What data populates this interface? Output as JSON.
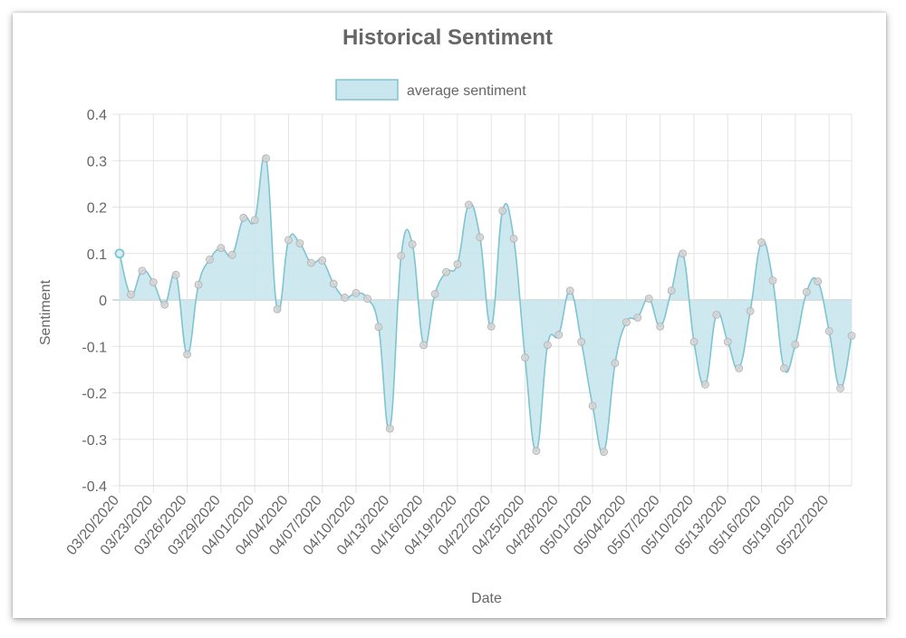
{
  "chart_data": {
    "type": "area",
    "title": "Historical Sentiment",
    "xlabel": "Date",
    "ylabel": "Sentiment",
    "ylim": [
      -0.4,
      0.4
    ],
    "y_ticks": [
      "0.4",
      "0.3",
      "0.2",
      "0.1",
      "0",
      "-0.1",
      "-0.2",
      "-0.3",
      "-0.4"
    ],
    "x_tick_labels": [
      "03/20/2020",
      "03/23/2020",
      "03/26/2020",
      "03/29/2020",
      "04/01/2020",
      "04/04/2020",
      "04/07/2020",
      "04/10/2020",
      "04/13/2020",
      "04/16/2020",
      "04/19/2020",
      "04/22/2020",
      "04/25/2020",
      "04/28/2020",
      "05/01/2020",
      "05/04/2020",
      "05/07/2020",
      "05/10/2020",
      "05/13/2020",
      "05/16/2020",
      "05/19/2020",
      "05/22/2020"
    ],
    "x_start": "03/20/2020",
    "x_end": "05/24/2020",
    "legend": "top",
    "grid": true,
    "colors": {
      "fill": "#c9e6ee",
      "line": "#7ec4d1",
      "point": "#d3d3d3",
      "point_border": "#b0b0b0"
    },
    "series": [
      {
        "name": "average sentiment",
        "values": [
          0.1,
          0.012,
          0.063,
          0.038,
          -0.01,
          0.054,
          -0.117,
          0.033,
          0.087,
          0.112,
          0.097,
          0.177,
          0.172,
          0.305,
          -0.02,
          0.129,
          0.122,
          0.08,
          0.085,
          0.035,
          0.005,
          0.015,
          0.003,
          -0.058,
          -0.277,
          0.095,
          0.12,
          -0.097,
          0.013,
          0.06,
          0.077,
          0.205,
          0.135,
          -0.057,
          0.192,
          0.132,
          -0.124,
          -0.325,
          -0.097,
          -0.075,
          0.02,
          -0.09,
          -0.228,
          -0.327,
          -0.136,
          -0.048,
          -0.038,
          0.003,
          -0.057,
          0.02,
          0.1,
          -0.09,
          -0.182,
          -0.032,
          -0.09,
          -0.147,
          -0.024,
          0.124,
          0.042,
          -0.147,
          -0.096,
          0.017,
          0.04,
          -0.067,
          -0.19,
          -0.077
        ]
      }
    ]
  }
}
